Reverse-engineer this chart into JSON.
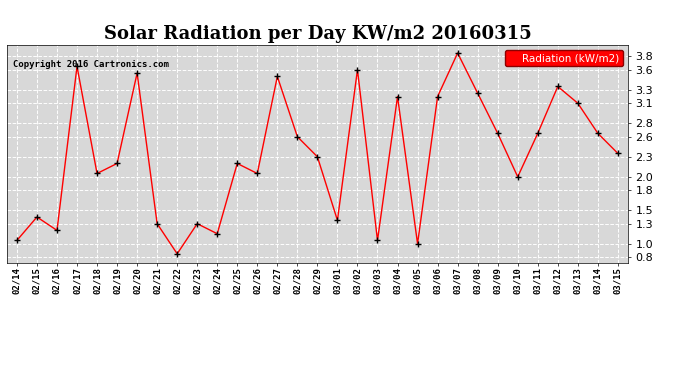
{
  "title": "Solar Radiation per Day KW/m2 20160315",
  "copyright": "Copyright 2016 Cartronics.com",
  "legend_label": "Radiation (kW/m2)",
  "dates": [
    "02/14",
    "02/15",
    "02/16",
    "02/17",
    "02/18",
    "02/19",
    "02/20",
    "02/21",
    "02/22",
    "02/23",
    "02/24",
    "02/25",
    "02/26",
    "02/27",
    "02/28",
    "02/29",
    "03/01",
    "03/02",
    "03/03",
    "03/04",
    "03/05",
    "03/06",
    "03/07",
    "03/08",
    "03/09",
    "03/10",
    "03/11",
    "03/12",
    "03/13",
    "03/14",
    "03/15"
  ],
  "values": [
    1.05,
    1.4,
    1.2,
    3.65,
    2.05,
    2.2,
    3.55,
    1.3,
    0.85,
    1.3,
    1.15,
    2.2,
    2.05,
    3.5,
    2.6,
    2.3,
    1.35,
    3.6,
    1.05,
    3.2,
    1.0,
    3.2,
    3.85,
    3.25,
    2.65,
    2.0,
    2.65,
    3.35,
    3.1,
    2.65,
    2.35
  ],
  "line_color": "red",
  "marker_color": "black",
  "bg_color": "#ffffff",
  "plot_bg_color": "#d8d8d8",
  "grid_color": "#ffffff",
  "ylim": [
    0.72,
    3.97
  ],
  "yticks": [
    0.8,
    1.0,
    1.3,
    1.5,
    1.8,
    2.0,
    2.3,
    2.6,
    2.8,
    3.1,
    3.3,
    3.6,
    3.8
  ],
  "title_fontsize": 13,
  "legend_box_color": "red",
  "legend_text_color": "white"
}
